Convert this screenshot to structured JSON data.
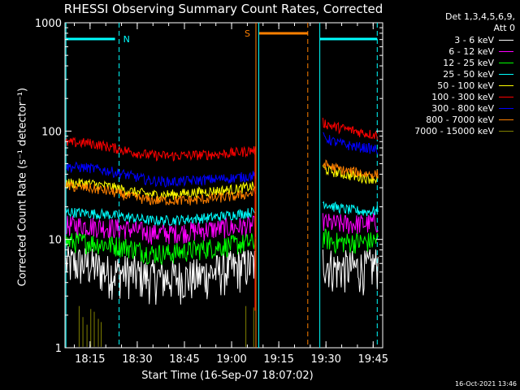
{
  "chart_data": {
    "type": "line",
    "title": "RHESSI Observing Summary Count Rates, Corrected",
    "xlabel": "Start Time (16-Sep-07 18:07:02)",
    "ylabel": "Corrected Count Rate (s⁻¹ detector⁻¹)",
    "yscale": "log",
    "ylim": [
      1,
      1000
    ],
    "xlim_minutes": [
      0,
      101
    ],
    "x_ticks": [
      "18:15",
      "18:30",
      "18:45",
      "19:00",
      "19:15",
      "19:30",
      "19:45"
    ],
    "y_ticks": [
      "1",
      "10",
      "100",
      "1000"
    ],
    "legend_header": [
      "Det 1,3,4,5,6,9,",
      "Att 0"
    ],
    "legend_placement": "right",
    "timestamp": "16-Oct-2021 13:46",
    "markers": [
      {
        "label": "N",
        "color": "#00ffff"
      },
      {
        "label": "S",
        "color": "#ff8000"
      }
    ],
    "series": [
      {
        "name": "3 - 6 keV",
        "color": "#ffffff",
        "pre": [
          6,
          6,
          5,
          5,
          4.5,
          4.5,
          4.5,
          5,
          5.5,
          6
        ],
        "post": [
          6.5,
          5.5,
          5.5,
          5.5,
          5.5,
          6
        ]
      },
      {
        "name": "6 - 12 keV",
        "color": "#ff00ff",
        "pre": [
          13.5,
          13.5,
          13,
          12.5,
          11.5,
          11.5,
          12,
          12.5,
          13,
          13.5
        ],
        "post": [
          14.5,
          14,
          14,
          14,
          14,
          14.5
        ]
      },
      {
        "name": "12 - 25 keV",
        "color": "#00ff00",
        "pre": [
          9.5,
          9.5,
          9,
          8.5,
          7.5,
          7.5,
          8,
          8.5,
          9,
          9.5
        ],
        "post": [
          10.5,
          9.5,
          9.5,
          9.5,
          9.5,
          10
        ]
      },
      {
        "name": "25 - 50 keV",
        "color": "#00ffff",
        "pre": [
          18,
          17.5,
          17,
          16,
          15,
          15,
          15.5,
          16,
          17,
          18
        ],
        "post": [
          22,
          20,
          19,
          18.5,
          18,
          18.5
        ]
      },
      {
        "name": "50 - 100 keV",
        "color": "#ffff00",
        "pre": [
          33,
          33,
          31,
          28,
          26,
          26,
          27,
          28,
          29,
          31
        ],
        "post": [
          45,
          42,
          40,
          38,
          37,
          36
        ]
      },
      {
        "name": "100 - 300 keV",
        "color": "#ff0000",
        "pre": [
          78,
          78,
          72,
          65,
          60,
          59,
          60,
          61,
          63,
          67
        ],
        "post": [
          120,
          110,
          105,
          100,
          95,
          92
        ]
      },
      {
        "name": "300 - 800 keV",
        "color": "#0000ff",
        "pre": [
          47,
          46,
          43,
          39,
          35,
          34,
          35,
          36,
          37,
          39
        ],
        "post": [
          88,
          80,
          75,
          72,
          70,
          67
        ]
      },
      {
        "name": "800 - 7000 keV",
        "color": "#ff8000",
        "pre": [
          31,
          30,
          28,
          25,
          23,
          23,
          23,
          24,
          25,
          27
        ],
        "post": [
          50,
          46,
          43,
          42,
          40,
          40
        ]
      },
      {
        "name": "7000 - 15000 keV",
        "color": "#808000",
        "pre": [],
        "post": []
      }
    ]
  }
}
